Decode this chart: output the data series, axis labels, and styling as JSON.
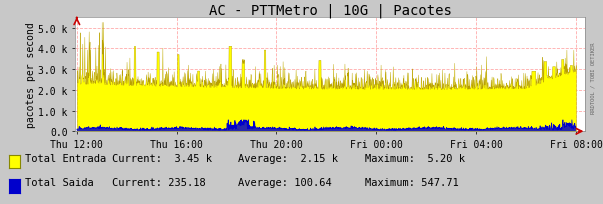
{
  "title": "AC - PTTMetro | 10G | Pacotes",
  "ylabel": "pacotes per second",
  "bg_color": "#c8c8c8",
  "plot_bg_color": "#ffffff",
  "grid_color": "#ffaaaa",
  "xtick_labels": [
    "Thu 12:00",
    "Thu 16:00",
    "Thu 20:00",
    "Fri 00:00",
    "Fri 04:00",
    "Fri 08:00"
  ],
  "ytick_labels": [
    "0.0",
    "1.0 k",
    "2.0 k",
    "3.0 k",
    "4.0 k",
    "5.0 k"
  ],
  "ytick_values": [
    0,
    1000,
    2000,
    3000,
    4000,
    5000
  ],
  "ylim": [
    0,
    5500
  ],
  "entrada_color": "#ffff00",
  "entrada_line_color": "#b8a000",
  "saida_color": "#0000cc",
  "legend_entrada": "Total Entrada",
  "legend_saida": "Total Saida",
  "current_entrada": "3.45 k",
  "avg_entrada": "2.15 k",
  "max_entrada": "5.20 k",
  "current_saida": "235.18",
  "avg_saida": "100.64",
  "max_saida": "547.71",
  "watermark": "RRDTOOL / TOBI OETIKER",
  "title_fontsize": 10,
  "label_fontsize": 7,
  "tick_fontsize": 7,
  "legend_fontsize": 7.5
}
